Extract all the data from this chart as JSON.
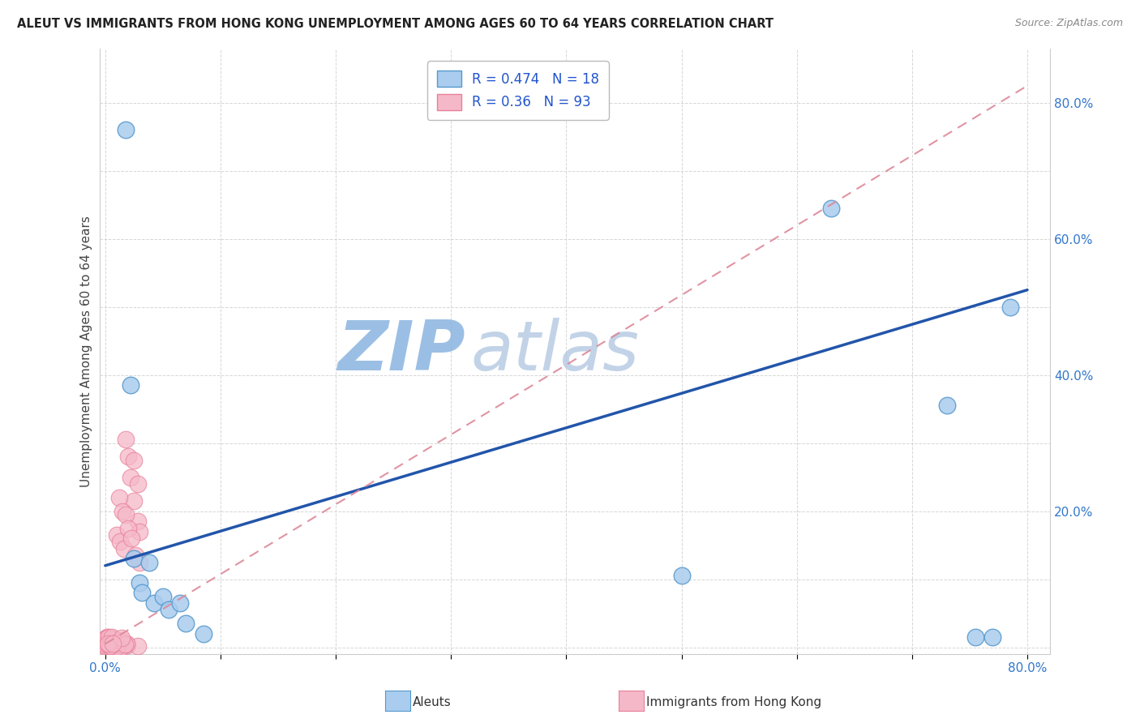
{
  "title": "ALEUT VS IMMIGRANTS FROM HONG KONG UNEMPLOYMENT AMONG AGES 60 TO 64 YEARS CORRELATION CHART",
  "source": "Source: ZipAtlas.com",
  "xlabel_label": "Aleuts",
  "xlabel_label2": "Immigrants from Hong Kong",
  "ylabel": "Unemployment Among Ages 60 to 64 years",
  "aleut_R": 0.474,
  "aleut_N": 18,
  "hk_R": 0.36,
  "hk_N": 93,
  "aleut_color": "#aaccee",
  "aleut_edge": "#5599cc",
  "hk_color": "#f5b8c8",
  "hk_edge": "#e88099",
  "aleut_line_color": "#2255aa",
  "hk_line_color": "#dd8899",
  "watermark_zip_color": "#c5d8f0",
  "watermark_atlas_color": "#c8d8e8",
  "grid_color": "#cccccc",
  "xlim": [
    -0.005,
    0.82
  ],
  "ylim": [
    -0.01,
    0.88
  ],
  "xticks": [
    0.0,
    0.1,
    0.2,
    0.3,
    0.4,
    0.5,
    0.6,
    0.7,
    0.8
  ],
  "yticks": [
    0.0,
    0.1,
    0.2,
    0.3,
    0.4,
    0.5,
    0.6,
    0.7,
    0.8
  ],
  "aleut_x": [
    0.018,
    0.022,
    0.025,
    0.03,
    0.032,
    0.038,
    0.042,
    0.05,
    0.055,
    0.065,
    0.07,
    0.085,
    0.5,
    0.63,
    0.73,
    0.755,
    0.77,
    0.785
  ],
  "aleut_y": [
    0.76,
    0.385,
    0.13,
    0.095,
    0.08,
    0.125,
    0.065,
    0.075,
    0.055,
    0.065,
    0.035,
    0.02,
    0.105,
    0.645,
    0.355,
    0.015,
    0.015,
    0.5
  ],
  "hk_x_scattered": [
    0.018,
    0.02,
    0.022,
    0.025,
    0.028,
    0.03,
    0.012,
    0.015,
    0.018,
    0.01,
    0.013,
    0.016,
    0.02,
    0.023,
    0.026,
    0.03,
    0.025,
    0.028
  ],
  "hk_y_scattered": [
    0.305,
    0.28,
    0.25,
    0.215,
    0.185,
    0.17,
    0.22,
    0.2,
    0.195,
    0.165,
    0.155,
    0.145,
    0.175,
    0.16,
    0.135,
    0.125,
    0.275,
    0.24
  ],
  "aleut_line_x0": 0.0,
  "aleut_line_x1": 0.8,
  "aleut_line_y0": 0.12,
  "aleut_line_y1": 0.525,
  "hk_line_x0": 0.0,
  "hk_line_x1": 0.8,
  "hk_line_y0": 0.005,
  "hk_line_y1": 0.825,
  "marker_size": 220
}
